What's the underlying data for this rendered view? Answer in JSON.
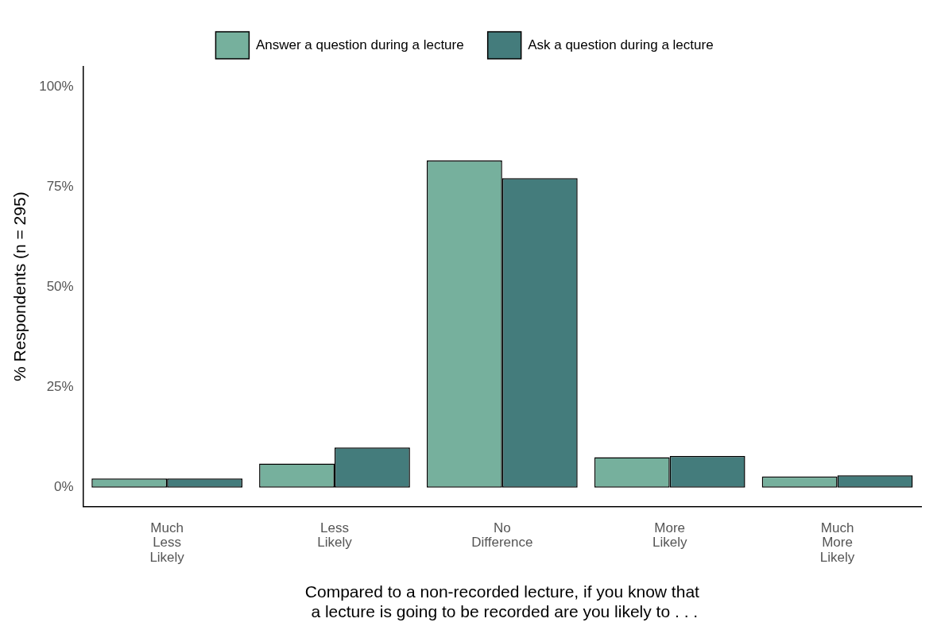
{
  "chart_data": {
    "type": "bar",
    "categories": [
      "Much Less Likely",
      "Less Likely",
      "No Difference",
      "More Likely",
      "Much More Likely"
    ],
    "series": [
      {
        "name": "Answer a question during a lecture",
        "color": "#76b09d",
        "values": [
          2.3,
          6.0,
          81.6,
          7.6,
          2.8
        ]
      },
      {
        "name": "Ask a question during a lecture",
        "color": "#447c7c",
        "values": [
          2.3,
          10.0,
          77.2,
          7.9,
          3.1
        ]
      }
    ],
    "xlabel": "Compared to a non-recorded lecture, if you know that\n a lecture is going to be recorded are you likely to . . .",
    "ylabel": "% Respondents (n = 295)",
    "ylim": [
      -4.7,
      105
    ],
    "yticks": [
      {
        "value": 0,
        "label": "0%"
      },
      {
        "value": 25,
        "label": "25%"
      },
      {
        "value": 50,
        "label": "50%"
      },
      {
        "value": 75,
        "label": "75%"
      },
      {
        "value": 100,
        "label": "100%"
      }
    ],
    "grid": false,
    "legend": "top"
  }
}
